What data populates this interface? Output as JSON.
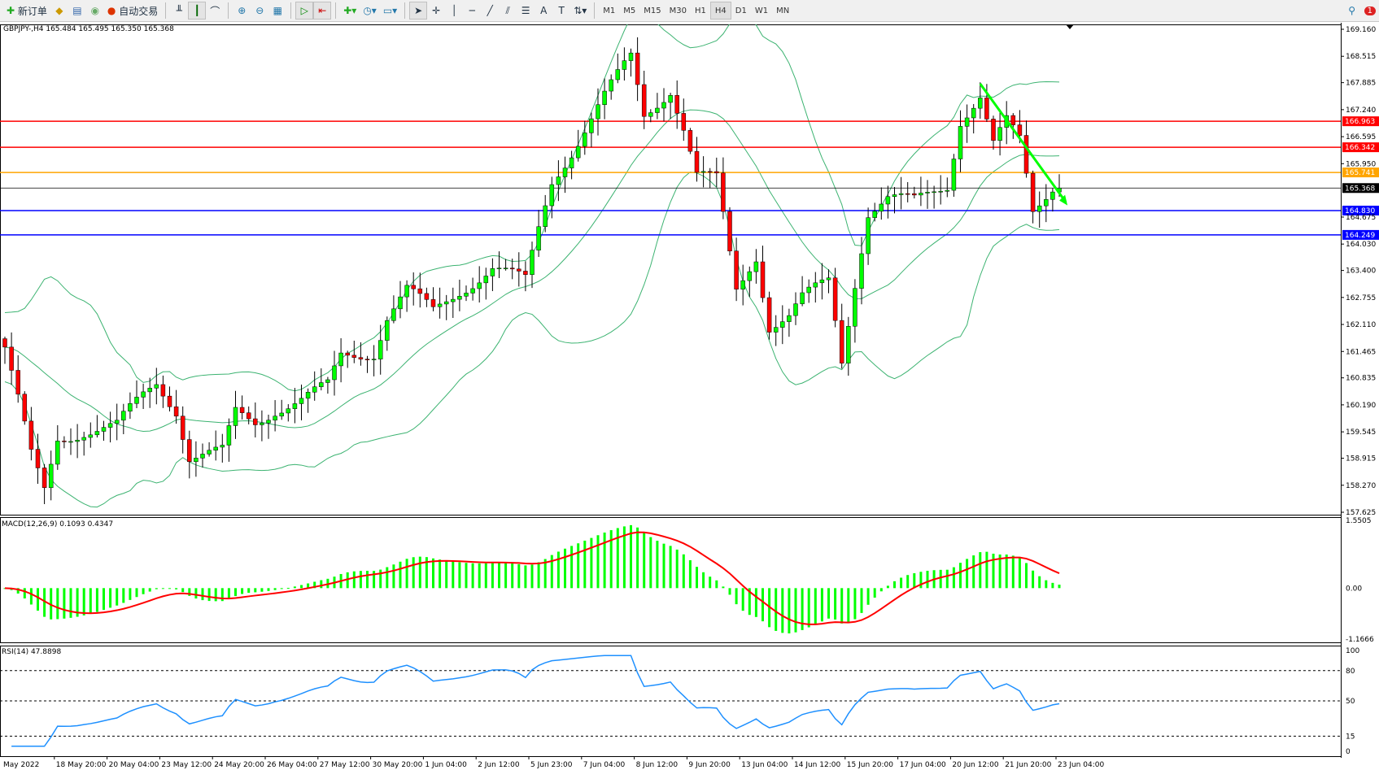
{
  "toolbar": {
    "new_order": "新订单",
    "auto_trading": "自动交易",
    "timeframes": [
      "M1",
      "M5",
      "M15",
      "M30",
      "H1",
      "H4",
      "D1",
      "W1",
      "MN"
    ],
    "active_timeframe": "H4",
    "notification_count": "1"
  },
  "chart": {
    "header": "GBPJPY-,H4  165.484 165.495 165.350 165.368",
    "price_ticks": [
      "169.160",
      "168.515",
      "167.885",
      "167.240",
      "166.595",
      "165.950",
      "164.675",
      "164.030",
      "163.400",
      "162.755",
      "162.110",
      "161.465",
      "160.835",
      "160.190",
      "159.545",
      "158.915",
      "158.270",
      "157.625"
    ],
    "time_labels": [
      "May 2022",
      "18 May 20:00",
      "20 May 04:00",
      "23 May 12:00",
      "24 May 20:00",
      "26 May 04:00",
      "27 May 12:00",
      "30 May 20:00",
      "1 Jun 04:00",
      "2 Jun 12:00",
      "5 Jun 23:00",
      "7 Jun 04:00",
      "8 Jun 12:00",
      "9 Jun 20:00",
      "13 Jun 04:00",
      "14 Jun 12:00",
      "15 Jun 20:00",
      "17 Jun 04:00",
      "20 Jun 12:00",
      "21 Jun 20:00",
      "23 Jun 04:00"
    ],
    "hlines": [
      {
        "price": "166.963",
        "color": "#ff0000"
      },
      {
        "price": "166.342",
        "color": "#ff0000"
      },
      {
        "price": "165.741",
        "color": "#ffa500"
      },
      {
        "price": "164.830",
        "color": "#0000ff"
      },
      {
        "price": "164.249",
        "color": "#0000ff"
      }
    ],
    "current_price": "165.368",
    "macd_label": "MACD(12,26,9) 0.1093 0.4347",
    "macd_ticks": [
      "1.5505",
      "0.00",
      "-1.1666"
    ],
    "rsi_label": "RSI(14) 47.8898",
    "rsi_ticks": [
      "100",
      "80",
      "50",
      "15",
      "0"
    ]
  },
  "chart_data": {
    "type": "candlestick",
    "symbol": "GBPJPY-",
    "timeframe": "H4",
    "ylim": [
      157.625,
      169.16
    ],
    "close_path": [
      [
        0,
        161.57
      ],
      [
        2,
        160.31
      ],
      [
        4,
        158.95
      ],
      [
        6,
        158.11
      ],
      [
        8,
        159.37
      ],
      [
        12,
        159.58
      ],
      [
        17,
        159.68
      ],
      [
        21,
        160.41
      ],
      [
        23,
        160.73
      ],
      [
        26,
        160.1
      ],
      [
        28,
        158.95
      ],
      [
        33,
        159.05
      ],
      [
        35,
        159.99
      ],
      [
        38,
        159.78
      ],
      [
        41,
        160.1
      ],
      [
        45,
        160.31
      ],
      [
        49,
        160.62
      ],
      [
        51,
        161.36
      ],
      [
        56,
        161.46
      ],
      [
        58,
        162.3
      ],
      [
        61,
        162.93
      ],
      [
        65,
        162.41
      ],
      [
        69,
        162.93
      ],
      [
        74,
        163.46
      ],
      [
        79,
        163.14
      ],
      [
        81,
        164.4
      ],
      [
        83,
        165.55
      ],
      [
        87,
        166.5
      ],
      [
        91,
        167.55
      ],
      [
        95,
        168.49
      ],
      [
        97,
        167.12
      ],
      [
        101,
        167.75
      ],
      [
        103,
        166.81
      ],
      [
        105,
        165.66
      ],
      [
        108,
        165.55
      ],
      [
        110,
        163.77
      ],
      [
        111,
        162.93
      ],
      [
        114,
        163.77
      ],
      [
        116,
        162.09
      ],
      [
        119,
        162.3
      ],
      [
        121,
        162.72
      ],
      [
        125,
        163.14
      ],
      [
        127,
        161.25
      ],
      [
        129,
        163.14
      ],
      [
        131,
        164.82
      ],
      [
        134,
        165.13
      ],
      [
        138,
        165.03
      ],
      [
        143,
        165.45
      ],
      [
        145,
        167.02
      ],
      [
        148,
        167.55
      ],
      [
        150,
        166.39
      ],
      [
        152,
        166.92
      ],
      [
        154,
        166.5
      ],
      [
        156,
        164.82
      ],
      [
        159,
        165.45
      ],
      [
        160,
        165.368
      ]
    ],
    "indicators": [
      "Bollinger Bands",
      "MACD(12,26,9)",
      "RSI(14)"
    ],
    "rsi_levels": [
      80,
      50,
      15
    ],
    "trendline": {
      "from": [
        148,
        167.86
      ],
      "to": [
        161,
        165.03
      ],
      "color": "#00ff00"
    },
    "colors": {
      "bull": "#00ff00",
      "bear": "#ff0000",
      "bands": "#3cb371",
      "macd_hist": "#00ff00",
      "macd_signal": "#ff0000",
      "rsi": "#1e90ff"
    }
  }
}
